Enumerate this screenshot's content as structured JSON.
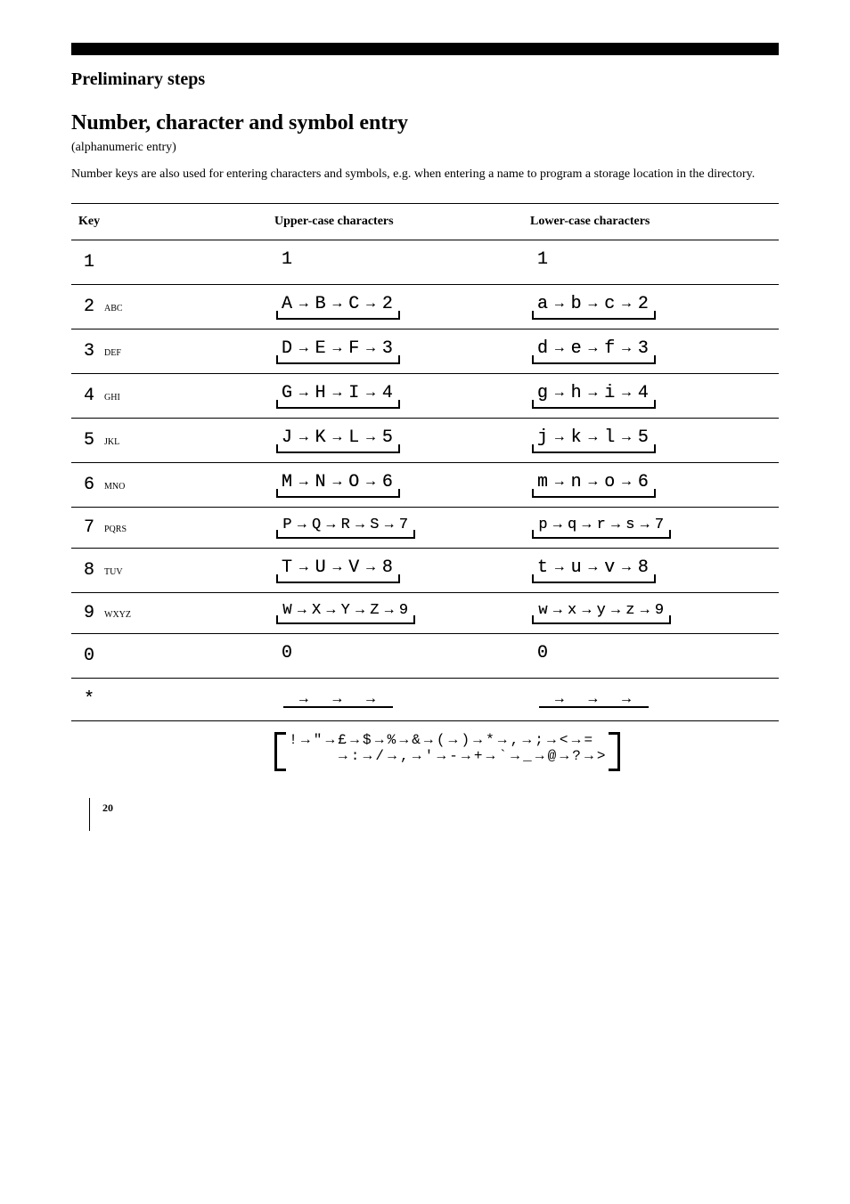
{
  "header": {
    "section_title": "Preliminary steps",
    "h1": "Number, character and symbol entry",
    "subtitle": "(alphanumeric entry)"
  },
  "intro": "Number keys are also used for entering characters and symbols, e.g. when entering a name to program a storage location in the directory.",
  "table": {
    "head": {
      "key": "Key",
      "upper": "Upper-case characters",
      "lower": "Lower-case characters"
    },
    "rows": [
      {
        "key_left": "1",
        "key_right": "",
        "upper_seq": [
          "1"
        ],
        "lower_seq": [
          "1"
        ],
        "loop": false
      },
      {
        "key_left": "2",
        "key_right": "ABC",
        "upper_seq": [
          "A",
          "B",
          "C",
          "2"
        ],
        "lower_seq": [
          "a",
          "b",
          "c",
          "2"
        ],
        "loop": true
      },
      {
        "key_left": "3",
        "key_right": "DEF",
        "upper_seq": [
          "D",
          "E",
          "F",
          "3"
        ],
        "lower_seq": [
          "d",
          "e",
          "f",
          "3"
        ],
        "loop": true
      },
      {
        "key_left": "4",
        "key_right": "GHI",
        "upper_seq": [
          "G",
          "H",
          "I",
          "4"
        ],
        "lower_seq": [
          "g",
          "h",
          "i",
          "4"
        ],
        "loop": true
      },
      {
        "key_left": "5",
        "key_right": "JKL",
        "upper_seq": [
          "J",
          "K",
          "L",
          "5"
        ],
        "lower_seq": [
          "j",
          "k",
          "l",
          "5"
        ],
        "loop": true
      },
      {
        "key_left": "6",
        "key_right": "MNO",
        "upper_seq": [
          "M",
          "N",
          "O",
          "6"
        ],
        "lower_seq": [
          "m",
          "n",
          "o",
          "6"
        ],
        "loop": true
      },
      {
        "key_left": "7",
        "key_right": "PQRS",
        "upper_seq": [
          "P",
          "Q",
          "R",
          "S",
          "7"
        ],
        "lower_seq": [
          "p",
          "q",
          "r",
          "s",
          "7"
        ],
        "loop": true
      },
      {
        "key_left": "8",
        "key_right": "TUV",
        "upper_seq": [
          "T",
          "U",
          "V",
          "8"
        ],
        "lower_seq": [
          "t",
          "u",
          "v",
          "8"
        ],
        "loop": true
      },
      {
        "key_left": "9",
        "key_right": "WXYZ",
        "upper_seq": [
          "W",
          "X",
          "Y",
          "Z",
          "9"
        ],
        "lower_seq": [
          "w",
          "x",
          "y",
          "z",
          "9"
        ],
        "loop": true
      },
      {
        "key_left": "0",
        "key_right": "",
        "upper_seq": [
          "0"
        ],
        "lower_seq": [
          "0"
        ],
        "loop": false
      },
      {
        "key_left": "*",
        "key_right": "",
        "upper_seq": [],
        "lower_seq": [],
        "loop": false,
        "blankline": true
      }
    ],
    "star_row": {
      "key_left": "*",
      "line1": [
        "!",
        "\"",
        "£",
        "$",
        "%",
        "&",
        "(",
        ")",
        "*",
        ",",
        ";",
        "<",
        "="
      ],
      "line2": [
        ":",
        "/",
        ",",
        " ' ",
        "-",
        "+",
        "`",
        "_",
        "@",
        "?",
        ">"
      ]
    }
  },
  "footer": {
    "page": "20"
  },
  "style": {
    "arrow_glyph": "→",
    "lcd_color": "#000000",
    "divider_color": "#000000",
    "bg": "#ffffff",
    "lcd_font": "Courier New"
  }
}
